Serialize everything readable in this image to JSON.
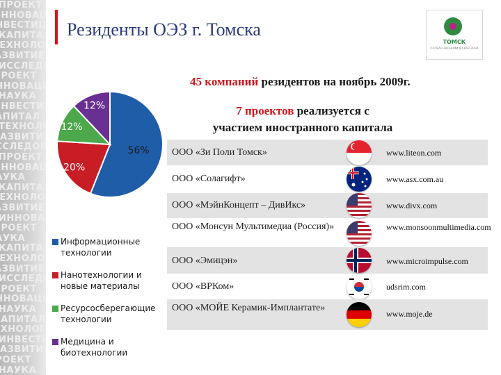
{
  "title": "Резиденты ОЭЗ г. Томска",
  "logo": {
    "name": "ТОМСК",
    "subtitle": "ОСОБАЯ ЭКОНОМИЧЕСКАЯ ЗОНА"
  },
  "headline1": {
    "highlight": "45 компаний",
    "rest": " резидентов на ноябрь 2009г."
  },
  "headline2": {
    "highlight": "7 проектов",
    "rest": " реализуется с",
    "line2": "участием иностранного капитала"
  },
  "sidebar_words": [
    "ПРОЕКТ",
    "ИННОВАЦИИ",
    "ИНВЕСТИЦИИ",
    "КАПИТАЛ",
    "ТЕХНОЛОГИИ",
    "РАЗВИТИЕ",
    "ИССЛЕДОВАНИЯ",
    "ПРОЕКТ",
    "ИННОВАЦИИ",
    "НАУКА",
    "ИНВЕСТИЦИИ",
    "КАПИТАЛ",
    "ТЕХНОЛОГИИ",
    "РАЗВИТИЕ",
    "ИССЛЕДОВАНИЯ",
    "ПРОЕКТ",
    "ИННОВАЦИИ",
    "НАУКА",
    "КАПИТАЛ",
    "ТЕХНОЛОГИИ",
    "РАЗВИТИЕ",
    "ИННОВАЦИИ",
    "ПРОЕКТ",
    "НАУКА",
    "КАПИТАЛ",
    "ТЕХНОЛОГИИ",
    "РАЗВИТИЕ",
    "ИССЛЕДОВАНИЯ",
    "ПРОЕКТ",
    "ИННОВАЦИИ",
    "НАУКА",
    "КАПИТАЛ",
    "ТЕХНОЛОГИИ",
    "ИНВЕСТИЦИИ",
    "РАЗВИТИЕ",
    "ПРОЕКТ",
    "НАУКА"
  ],
  "chart_data": {
    "type": "pie",
    "categories": [
      "Информационные технологии",
      "Нанотехнологии и новые материалы",
      "Ресурсосберегающие технологии",
      "Медицина и биотехнологии"
    ],
    "values": [
      56,
      20,
      12,
      12
    ],
    "labels": [
      "56%",
      "20%",
      "12%",
      "12%"
    ],
    "colors": [
      "#1f5da8",
      "#c81d25",
      "#4ca84a",
      "#6a2f93"
    ]
  },
  "legend": [
    {
      "label": "Информационные технологии",
      "color": "#1f5da8"
    },
    {
      "label": "Нанотехнологии и новые материалы",
      "color": "#c81d25"
    },
    {
      "label": "Ресурсосберегающие технологии",
      "color": "#4ca84a"
    },
    {
      "label": "Медицина и биотехнологии",
      "color": "#6a2f93"
    }
  ],
  "companies": [
    {
      "name": "ООО «Зи Поли Томск»",
      "site": "www.liteon.com",
      "flag": "singapore-flag"
    },
    {
      "name": "ООО «Солагифт»",
      "site": "www.asx.com.au",
      "flag": "australia-flag"
    },
    {
      "name": "ООО «МэйнКонцепт – ДивИкс»",
      "site": "www.divx.com",
      "flag": "usa-flag"
    },
    {
      "name": "ООО «Монсун Мультимедиа (Россия)»",
      "site": "www.monsoonmultimedia.com",
      "flag": "usa-flag"
    },
    {
      "name": "ООО «Эмицэн»",
      "site": "www.microimpulse.com",
      "flag": "norway-flag"
    },
    {
      "name": "ООО «ВРКом»",
      "site": "udsrim.com",
      "flag": "south-korea-flag"
    },
    {
      "name": "ООО «МОЙЕ Керамик-Имплантате»",
      "site": "www.moje.de",
      "flag": "germany-flag"
    }
  ]
}
